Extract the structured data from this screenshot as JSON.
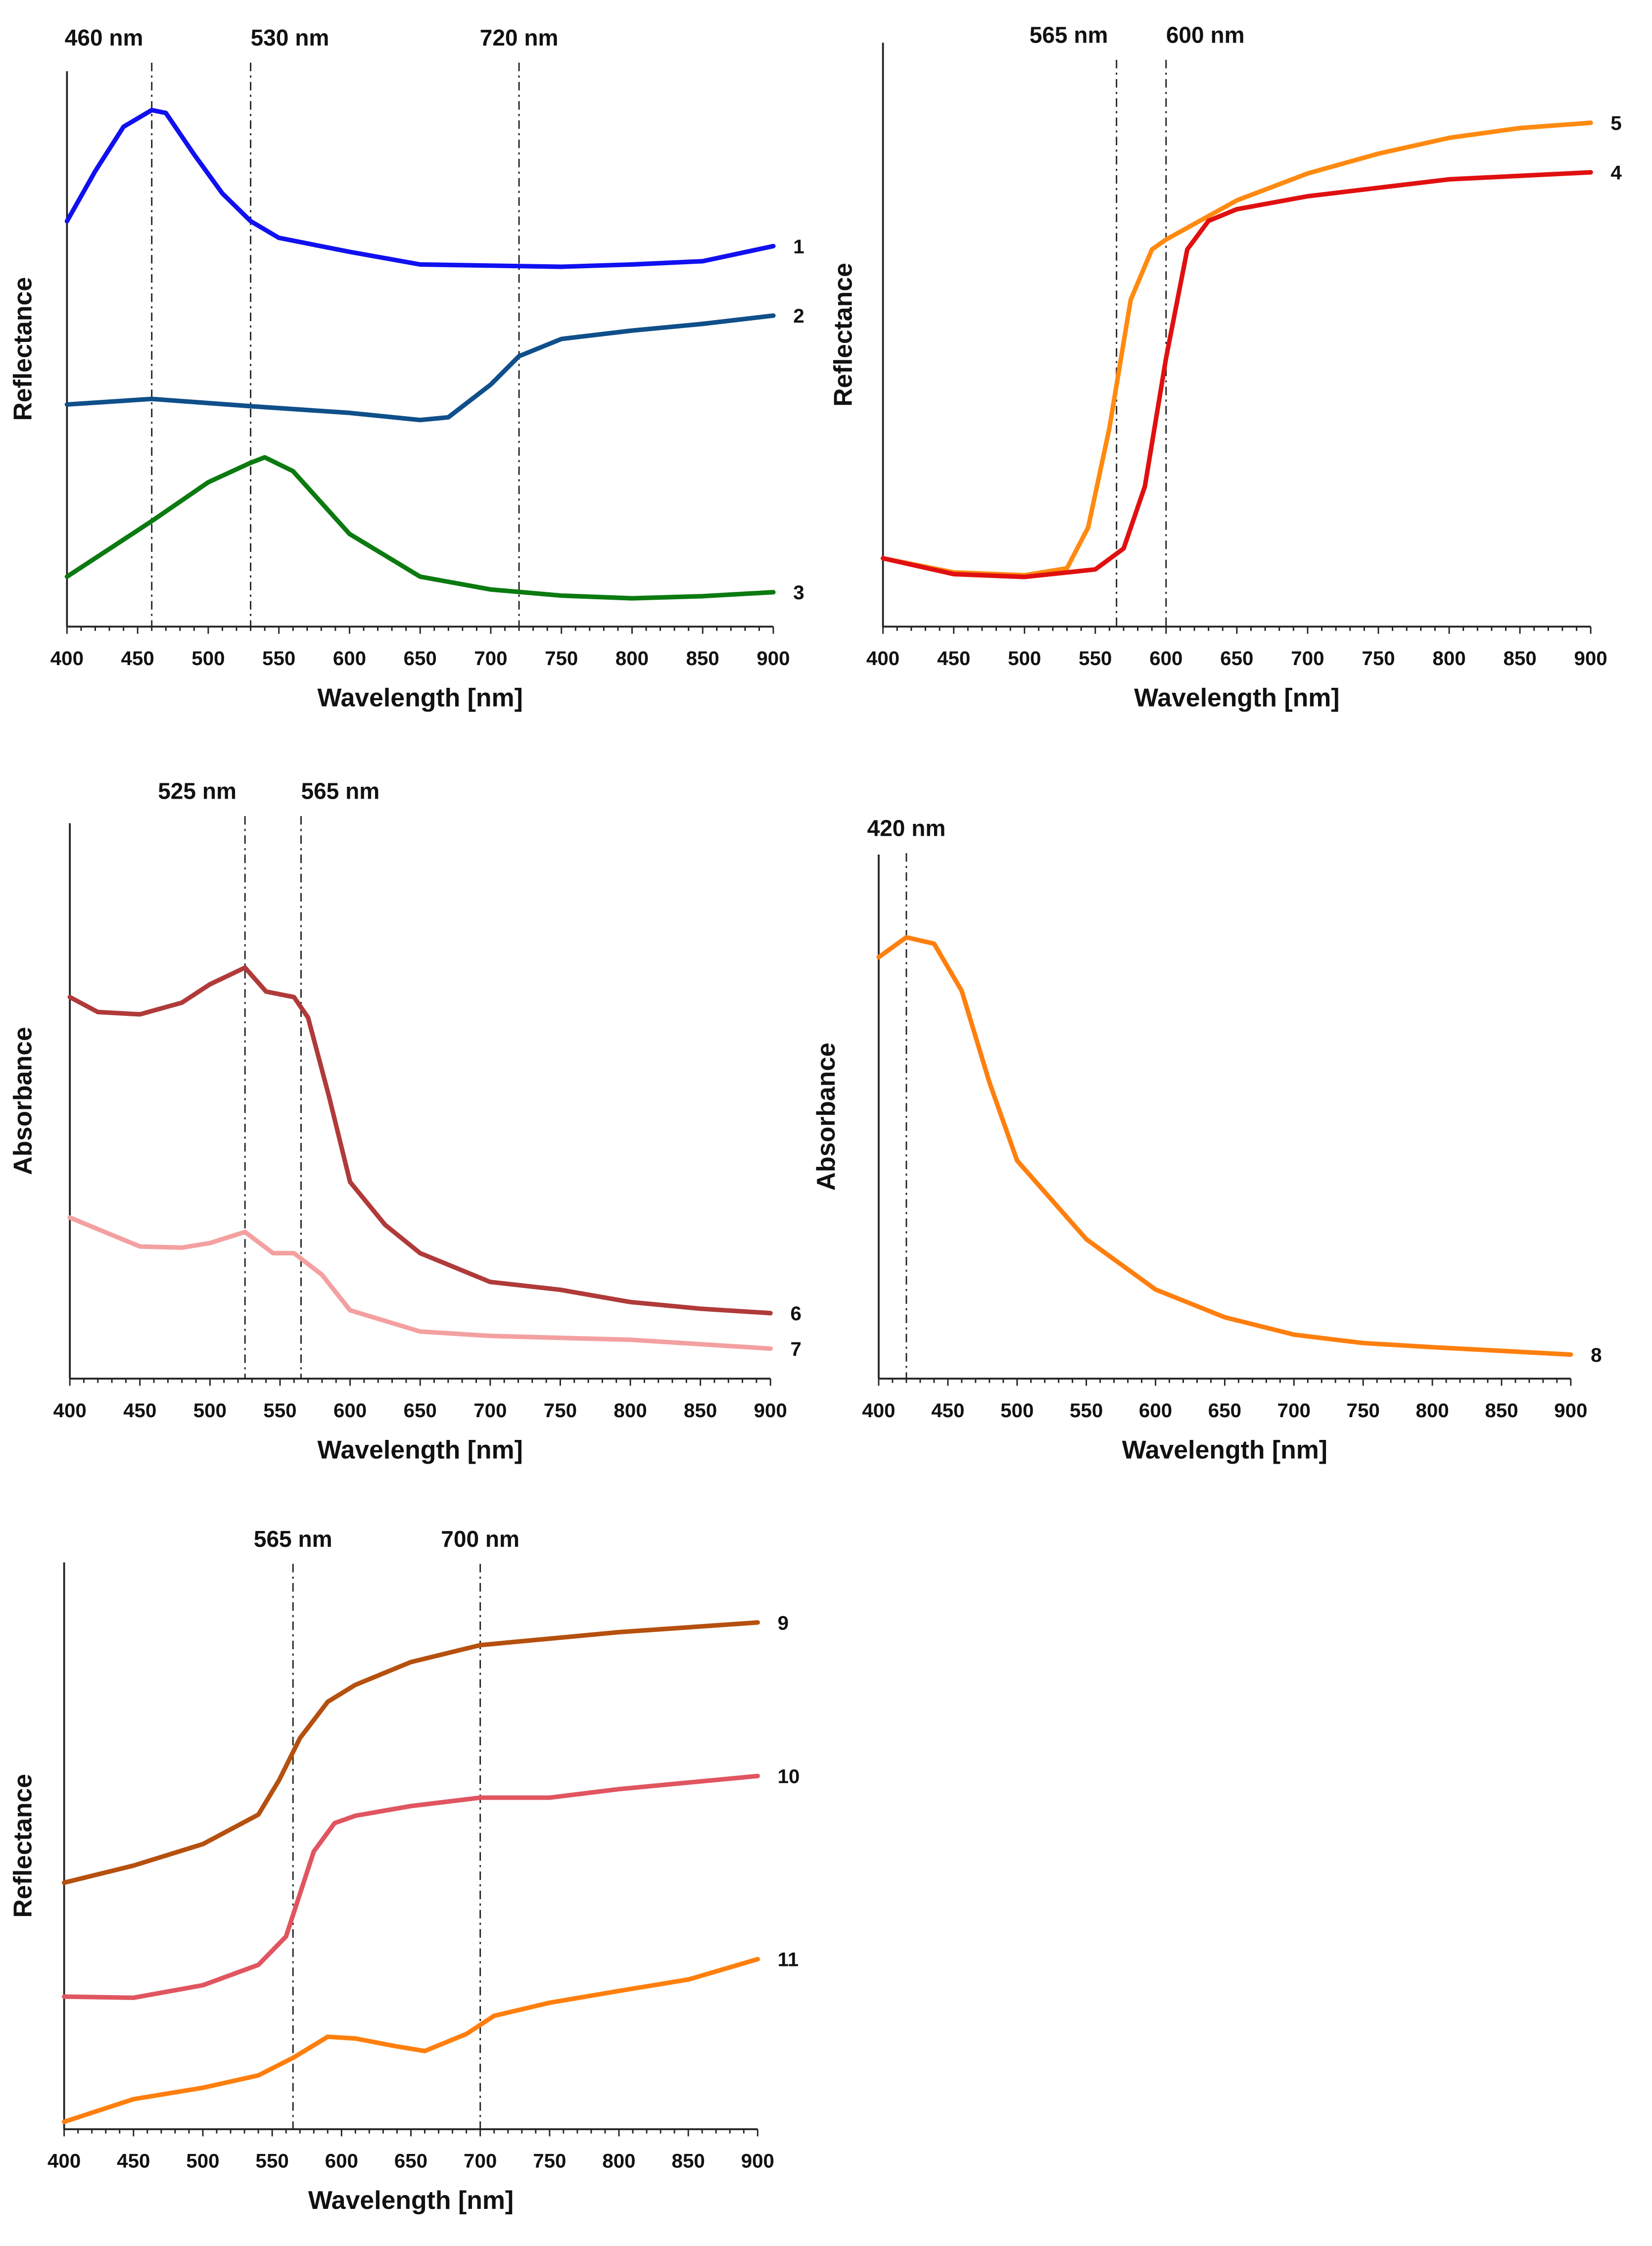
{
  "chart_data": [
    {
      "type": "line",
      "xlabel": "Wavelength [nm]",
      "ylabel": "Reflectance",
      "xlim": [
        400,
        900
      ],
      "ylim": [
        0,
        1
      ],
      "xticks": [
        400,
        450,
        500,
        550,
        600,
        650,
        700,
        750,
        800,
        850,
        900
      ],
      "markers": [
        {
          "x": 460,
          "label": "460 nm"
        },
        {
          "x": 530,
          "label": "530 nm"
        },
        {
          "x": 720,
          "label": "720 nm"
        }
      ],
      "series": [
        {
          "name": "1",
          "color": "#1010f0",
          "points": [
            [
              400,
              0.73
            ],
            [
              420,
              0.82
            ],
            [
              440,
              0.9
            ],
            [
              460,
              0.93
            ],
            [
              470,
              0.925
            ],
            [
              490,
              0.85
            ],
            [
              510,
              0.78
            ],
            [
              530,
              0.73
            ],
            [
              550,
              0.7
            ],
            [
              600,
              0.675
            ],
            [
              650,
              0.652
            ],
            [
              700,
              0.65
            ],
            [
              750,
              0.648
            ],
            [
              800,
              0.652
            ],
            [
              850,
              0.658
            ],
            [
              900,
              0.685
            ]
          ]
        },
        {
          "name": "2",
          "color": "#0f4f8a",
          "points": [
            [
              400,
              0.4
            ],
            [
              460,
              0.41
            ],
            [
              530,
              0.397
            ],
            [
              600,
              0.385
            ],
            [
              650,
              0.372
            ],
            [
              670,
              0.377
            ],
            [
              700,
              0.436
            ],
            [
              720,
              0.487
            ],
            [
              750,
              0.518
            ],
            [
              800,
              0.533
            ],
            [
              850,
              0.545
            ],
            [
              900,
              0.56
            ]
          ]
        },
        {
          "name": "3",
          "color": "#0b7a10",
          "points": [
            [
              400,
              0.09
            ],
            [
              430,
              0.14
            ],
            [
              460,
              0.19
            ],
            [
              500,
              0.26
            ],
            [
              530,
              0.295
            ],
            [
              540,
              0.305
            ],
            [
              560,
              0.28
            ],
            [
              600,
              0.167
            ],
            [
              650,
              0.09
            ],
            [
              700,
              0.067
            ],
            [
              750,
              0.056
            ],
            [
              800,
              0.051
            ],
            [
              850,
              0.055
            ],
            [
              900,
              0.062
            ]
          ]
        }
      ]
    },
    {
      "type": "line",
      "xlabel": "Wavelength [nm]",
      "ylabel": "Reflectance",
      "xlim": [
        400,
        900
      ],
      "ylim": [
        0,
        1
      ],
      "xticks": [
        400,
        450,
        500,
        550,
        600,
        650,
        700,
        750,
        800,
        850,
        900
      ],
      "markers": [
        {
          "x": 565,
          "label": "565 nm"
        },
        {
          "x": 600,
          "label": "600 nm"
        }
      ],
      "series": [
        {
          "name": "5",
          "color": "#ff8a10",
          "points": [
            [
              400,
              0.117
            ],
            [
              450,
              0.093
            ],
            [
              500,
              0.088
            ],
            [
              530,
              0.1
            ],
            [
              545,
              0.17
            ],
            [
              560,
              0.34
            ],
            [
              575,
              0.56
            ],
            [
              590,
              0.646
            ],
            [
              600,
              0.663
            ],
            [
              650,
              0.73
            ],
            [
              700,
              0.776
            ],
            [
              750,
              0.81
            ],
            [
              800,
              0.837
            ],
            [
              850,
              0.854
            ],
            [
              900,
              0.863
            ]
          ]
        },
        {
          "name": "4",
          "color": "#e01010",
          "points": [
            [
              400,
              0.117
            ],
            [
              450,
              0.09
            ],
            [
              500,
              0.085
            ],
            [
              550,
              0.098
            ],
            [
              570,
              0.134
            ],
            [
              585,
              0.24
            ],
            [
              600,
              0.46
            ],
            [
              615,
              0.646
            ],
            [
              630,
              0.695
            ],
            [
              650,
              0.715
            ],
            [
              700,
              0.737
            ],
            [
              800,
              0.766
            ],
            [
              900,
              0.778
            ]
          ]
        }
      ]
    },
    {
      "type": "line",
      "xlabel": "Wavelength [nm]",
      "ylabel": "Absorbance",
      "xlim": [
        400,
        900
      ],
      "ylim": [
        0,
        1
      ],
      "xticks": [
        400,
        450,
        500,
        550,
        600,
        650,
        700,
        750,
        800,
        850,
        900
      ],
      "markers": [
        {
          "x": 525,
          "label": "525 nm"
        },
        {
          "x": 565,
          "label": "565 nm"
        }
      ],
      "series": [
        {
          "name": "6",
          "color": "#b03a3a",
          "points": [
            [
              400,
              0.687
            ],
            [
              420,
              0.66
            ],
            [
              450,
              0.656
            ],
            [
              480,
              0.677
            ],
            [
              500,
              0.71
            ],
            [
              525,
              0.74
            ],
            [
              540,
              0.697
            ],
            [
              560,
              0.687
            ],
            [
              570,
              0.65
            ],
            [
              585,
              0.508
            ],
            [
              600,
              0.354
            ],
            [
              625,
              0.277
            ],
            [
              650,
              0.226
            ],
            [
              700,
              0.174
            ],
            [
              750,
              0.16
            ],
            [
              800,
              0.138
            ],
            [
              850,
              0.126
            ],
            [
              900,
              0.118
            ]
          ]
        },
        {
          "name": "7",
          "color": "#f4a0a0",
          "points": [
            [
              400,
              0.29
            ],
            [
              450,
              0.238
            ],
            [
              480,
              0.236
            ],
            [
              500,
              0.244
            ],
            [
              525,
              0.264
            ],
            [
              545,
              0.226
            ],
            [
              560,
              0.226
            ],
            [
              580,
              0.187
            ],
            [
              600,
              0.123
            ],
            [
              650,
              0.085
            ],
            [
              700,
              0.077
            ],
            [
              800,
              0.07
            ],
            [
              900,
              0.054
            ]
          ]
        }
      ]
    },
    {
      "type": "line",
      "xlabel": "Wavelength [nm]",
      "ylabel": "Absorbance",
      "xlim": [
        400,
        900
      ],
      "ylim": [
        0,
        1
      ],
      "xticks": [
        400,
        450,
        500,
        550,
        600,
        650,
        700,
        750,
        800,
        850,
        900
      ],
      "markers": [
        {
          "x": 420,
          "label": "420 nm"
        }
      ],
      "series": [
        {
          "name": "8",
          "color": "#ff7f0e",
          "points": [
            [
              400,
              0.804
            ],
            [
              420,
              0.842
            ],
            [
              440,
              0.83
            ],
            [
              460,
              0.74
            ],
            [
              480,
              0.565
            ],
            [
              500,
              0.416
            ],
            [
              550,
              0.266
            ],
            [
              600,
              0.17
            ],
            [
              650,
              0.117
            ],
            [
              700,
              0.084
            ],
            [
              750,
              0.068
            ],
            [
              800,
              0.06
            ],
            [
              900,
              0.046
            ]
          ]
        }
      ]
    },
    {
      "type": "line",
      "xlabel": "Wavelength [nm]",
      "ylabel": "Reflectance",
      "xlim": [
        400,
        900
      ],
      "ylim": [
        0,
        1
      ],
      "xticks": [
        400,
        450,
        500,
        550,
        600,
        650,
        700,
        750,
        800,
        850,
        900
      ],
      "markers": [
        {
          "x": 565,
          "label": "565 nm"
        },
        {
          "x": 700,
          "label": "700 nm"
        }
      ],
      "series": [
        {
          "name": "9",
          "color": "#b5500e",
          "points": [
            [
              400,
              0.435
            ],
            [
              450,
              0.465
            ],
            [
              500,
              0.503
            ],
            [
              540,
              0.555
            ],
            [
              555,
              0.616
            ],
            [
              570,
              0.69
            ],
            [
              590,
              0.754
            ],
            [
              610,
              0.784
            ],
            [
              650,
              0.824
            ],
            [
              700,
              0.854
            ],
            [
              800,
              0.877
            ],
            [
              900,
              0.894
            ]
          ]
        },
        {
          "name": "10",
          "color": "#e05560",
          "points": [
            [
              400,
              0.234
            ],
            [
              450,
              0.232
            ],
            [
              500,
              0.254
            ],
            [
              540,
              0.29
            ],
            [
              560,
              0.34
            ],
            [
              580,
              0.49
            ],
            [
              595,
              0.54
            ],
            [
              610,
              0.553
            ],
            [
              650,
              0.57
            ],
            [
              700,
              0.585
            ],
            [
              750,
              0.585
            ],
            [
              800,
              0.6
            ],
            [
              900,
              0.623
            ]
          ]
        },
        {
          "name": "11",
          "color": "#ff7f0e",
          "points": [
            [
              400,
              0.013
            ],
            [
              450,
              0.053
            ],
            [
              500,
              0.073
            ],
            [
              540,
              0.095
            ],
            [
              565,
              0.126
            ],
            [
              590,
              0.163
            ],
            [
              610,
              0.16
            ],
            [
              640,
              0.146
            ],
            [
              660,
              0.138
            ],
            [
              690,
              0.168
            ],
            [
              710,
              0.2
            ],
            [
              750,
              0.223
            ],
            [
              800,
              0.244
            ],
            [
              850,
              0.264
            ],
            [
              900,
              0.3
            ]
          ]
        }
      ]
    }
  ]
}
